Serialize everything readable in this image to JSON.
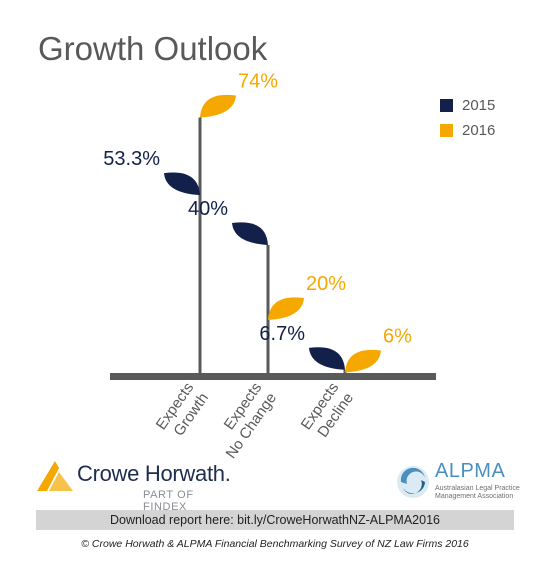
{
  "title": "Growth Outlook",
  "legend": [
    {
      "label": "2015",
      "color": "#13204a"
    },
    {
      "label": "2016",
      "color": "#f5a800"
    }
  ],
  "chart_data": {
    "type": "bar",
    "categories": [
      "Expects Growth",
      "Expects No Change",
      "Expects Decline"
    ],
    "category_lines": [
      [
        "Expects",
        "Growth"
      ],
      [
        "Expects",
        "No Change"
      ],
      [
        "Expects",
        "Decline"
      ]
    ],
    "series": [
      {
        "name": "2015",
        "values": [
          53.3,
          40,
          6.7
        ],
        "labels": [
          "53.3%",
          "40%",
          "6.7%"
        ],
        "color": "#13204a"
      },
      {
        "name": "2016",
        "values": [
          74,
          20,
          6
        ],
        "labels": [
          "74%",
          "20%",
          "6%"
        ],
        "color": "#f5a800"
      }
    ],
    "ylim": [
      0,
      80
    ],
    "grid": false,
    "legend_position": "top-right"
  },
  "logos": {
    "crowe_name": "Crowe Horwath.",
    "crowe_sub": "PART OF FINDEX",
    "alpma_name": "ALPMA",
    "alpma_tagline": "Australasian Legal Practice Management Association"
  },
  "download_text": "Download report here: bit.ly/CroweHorwathNZ-ALPMA2016",
  "footnote": "© Crowe Horwath & ALPMA Financial Benchmarking Survey of NZ Law Firms 2016",
  "colors": {
    "stem": "#58595b",
    "ground": "#58595b",
    "label_dark": "#13204a",
    "label_gold": "#f5a800"
  }
}
